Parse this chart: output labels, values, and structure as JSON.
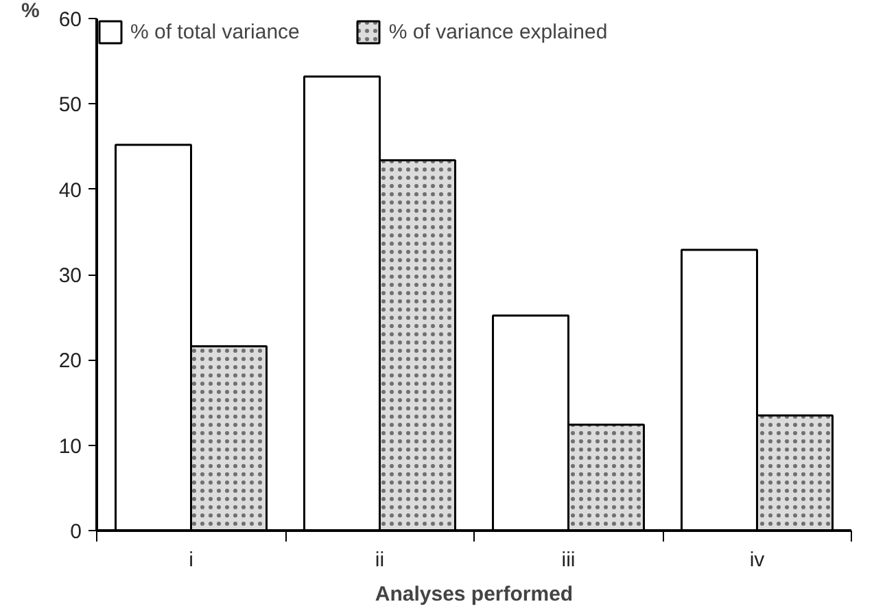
{
  "chart_data": {
    "type": "bar",
    "xlabel": "Analyses performed",
    "ylabel": "%",
    "categories": [
      "i",
      "ii",
      "iii",
      "iv"
    ],
    "series": [
      {
        "name": "% of total variance",
        "color": "#ffffff",
        "values": [
          45.2,
          53.2,
          25.2,
          32.9
        ]
      },
      {
        "name": "% of variance explained",
        "color": "#dcdcdc",
        "values": [
          21.6,
          43.4,
          12.4,
          13.5
        ]
      }
    ],
    "ylim": [
      0,
      60
    ],
    "yticks": [
      0,
      10,
      20,
      30,
      40,
      50,
      60
    ],
    "grid": false,
    "legend": "top"
  }
}
